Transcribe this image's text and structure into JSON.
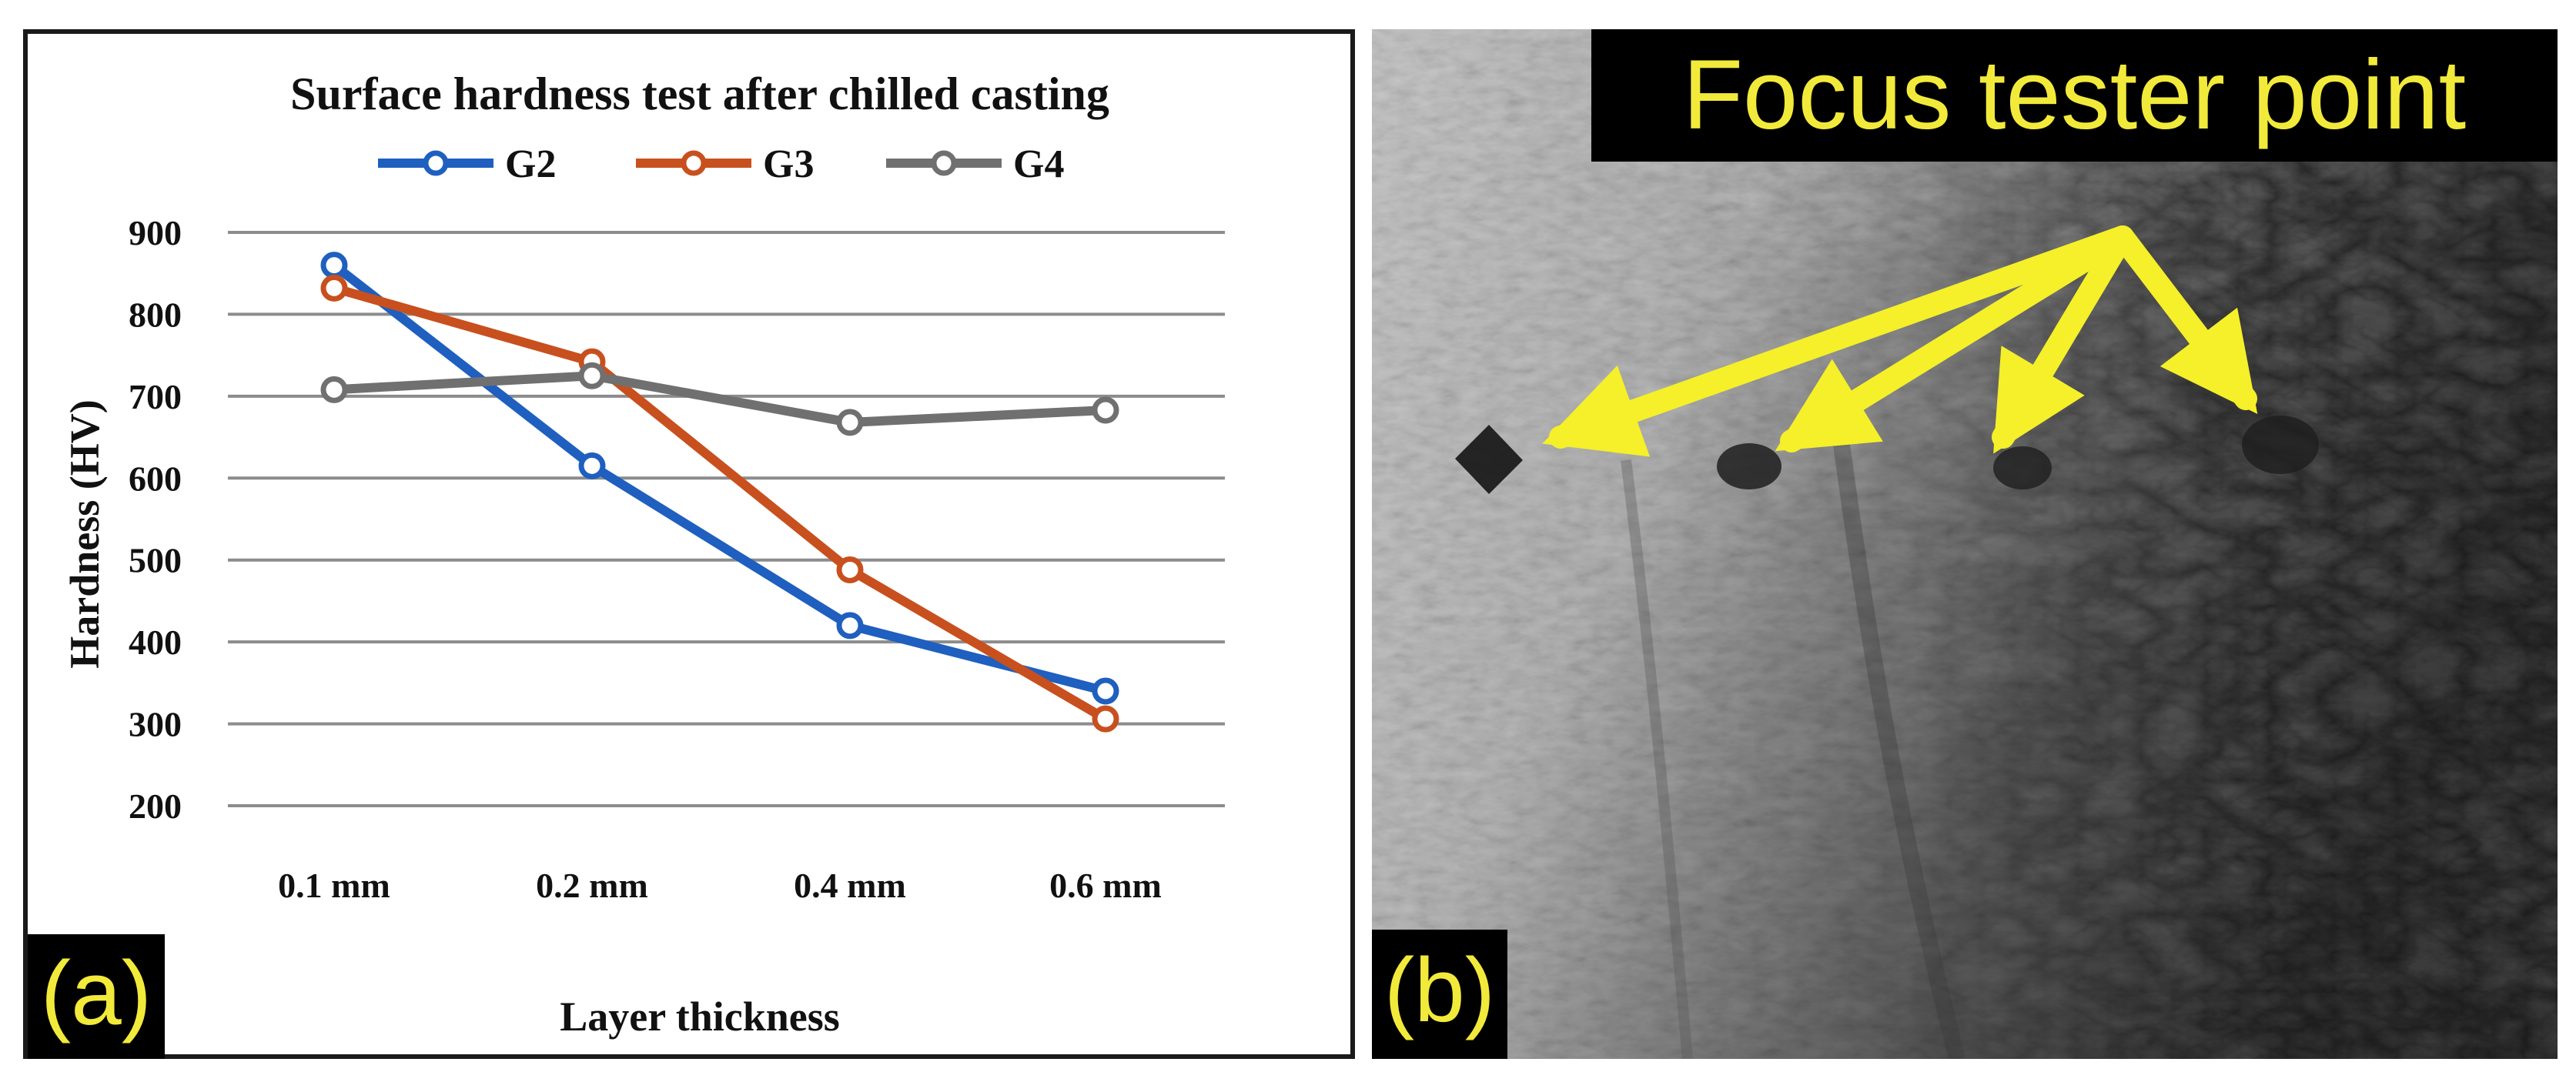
{
  "panel_a": {
    "label": "(a)",
    "chart_data": {
      "type": "line",
      "title": "Surface hardness test after chilled casting",
      "xlabel": "Layer thickness",
      "ylabel": "Hardness (HV)",
      "categories": [
        "0.1 mm",
        "0.2 mm",
        "0.4 mm",
        "0.6 mm"
      ],
      "ylim": [
        200,
        900
      ],
      "yticks": [
        900,
        800,
        700,
        600,
        500,
        400,
        300,
        200
      ],
      "grid": true,
      "legend_position": "top",
      "series": [
        {
          "name": "G2",
          "values": [
            860,
            615,
            420,
            340
          ],
          "color": "#1f5fbf"
        },
        {
          "name": "G3",
          "values": [
            832,
            742,
            488,
            306
          ],
          "color": "#c8501e"
        },
        {
          "name": "G4",
          "values": [
            708,
            725,
            668,
            683
          ],
          "color": "#707070"
        }
      ]
    }
  },
  "panel_b": {
    "label": "(b)",
    "banner_text": "Focus tester point",
    "arrow_color": "#f5f029"
  }
}
